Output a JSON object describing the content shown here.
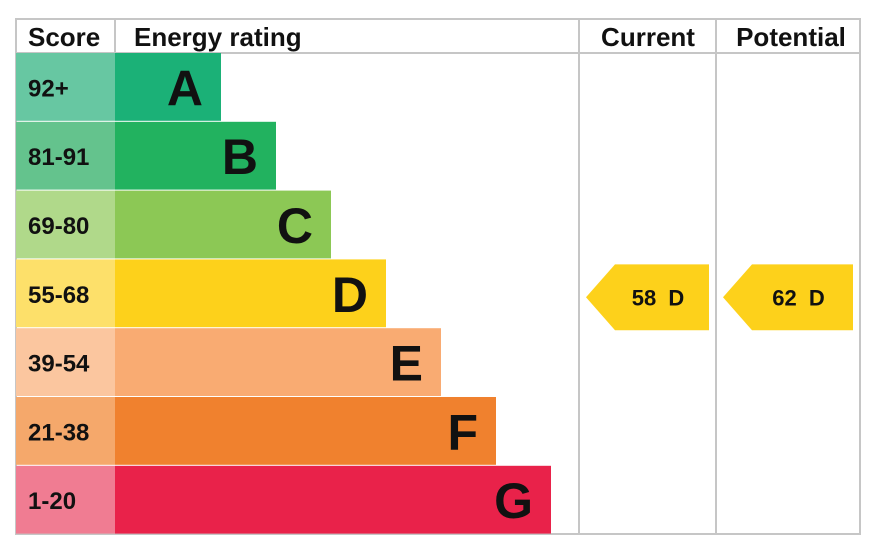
{
  "headers": {
    "score": "Score",
    "rating": "Energy rating",
    "current": "Current",
    "potential": "Potential"
  },
  "chart_data": {
    "type": "bar",
    "categories": [
      "A",
      "B",
      "C",
      "D",
      "E",
      "F",
      "G"
    ],
    "score_ranges": [
      "92+",
      "81-91",
      "69-80",
      "55-68",
      "39-54",
      "21-38",
      "1-20"
    ],
    "bar_colors": [
      "#1bb177",
      "#22b25f",
      "#8cc855",
      "#fdd11b",
      "#f9ab72",
      "#f0812e",
      "#e9224a"
    ],
    "score_cell_colors": [
      "#67c7a2",
      "#64c38d",
      "#b0d98a",
      "#fde06a",
      "#fbc69f",
      "#f5a86b",
      "#f07c92"
    ],
    "current": {
      "value": 58,
      "rating": "D",
      "label": "58  D"
    },
    "potential": {
      "value": 62,
      "rating": "D",
      "label": "62  D"
    },
    "arrow_color": "#fdd11b"
  }
}
